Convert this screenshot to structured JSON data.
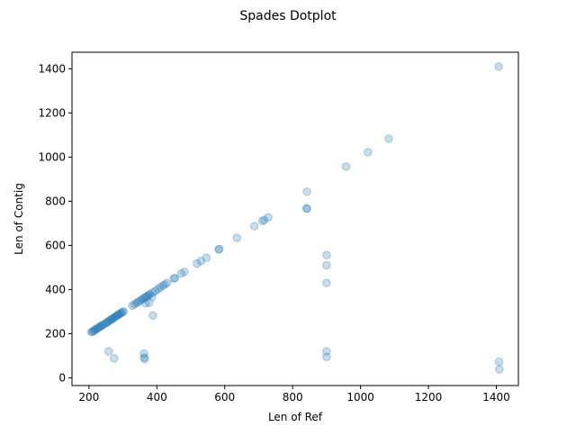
{
  "chart_data": {
    "type": "scatter",
    "title": "Spades Dotplot",
    "xlabel": "Len of Ref",
    "ylabel": "Len of Contig",
    "xlim": [
      150,
      1465
    ],
    "ylim": [
      -35,
      1475
    ],
    "xticks": [
      200,
      400,
      600,
      800,
      1000,
      1200,
      1400
    ],
    "yticks": [
      0,
      200,
      400,
      600,
      800,
      1000,
      1200,
      1400
    ],
    "grid": false,
    "legend": "none",
    "marker_color": "#1f77b4",
    "marker_alpha": 0.25,
    "series": [
      {
        "points": [
          [
            207,
            207
          ],
          [
            210,
            209
          ],
          [
            213,
            212
          ],
          [
            216,
            215
          ],
          [
            219,
            219
          ],
          [
            222,
            222
          ],
          [
            226,
            225
          ],
          [
            229,
            228
          ],
          [
            232,
            231
          ],
          [
            235,
            234
          ],
          [
            238,
            237
          ],
          [
            242,
            241
          ],
          [
            246,
            244
          ],
          [
            250,
            248
          ],
          [
            254,
            252
          ],
          [
            257,
            255
          ],
          [
            260,
            259
          ],
          [
            263,
            262
          ],
          [
            266,
            264
          ],
          [
            269,
            267
          ],
          [
            272,
            270
          ],
          [
            275,
            274
          ],
          [
            278,
            277
          ],
          [
            281,
            280
          ],
          [
            284,
            283
          ],
          [
            287,
            286
          ],
          [
            290,
            289
          ],
          [
            293,
            292
          ],
          [
            296,
            295
          ],
          [
            299,
            298
          ],
          [
            302,
            301
          ],
          [
            328,
            327
          ],
          [
            334,
            333
          ],
          [
            340,
            339
          ],
          [
            345,
            344
          ],
          [
            350,
            349
          ],
          [
            355,
            354
          ],
          [
            360,
            359
          ],
          [
            364,
            363
          ],
          [
            368,
            367
          ],
          [
            372,
            371
          ],
          [
            376,
            375
          ],
          [
            380,
            379
          ],
          [
            388,
            387
          ],
          [
            396,
            394
          ],
          [
            404,
            402
          ],
          [
            410,
            410
          ],
          [
            418,
            418
          ],
          [
            424,
            423
          ],
          [
            430,
            430
          ],
          [
            450,
            450
          ],
          [
            453,
            452
          ],
          [
            472,
            472
          ],
          [
            481,
            480
          ],
          [
            518,
            518
          ],
          [
            530,
            529
          ],
          [
            546,
            544
          ],
          [
            582,
            582
          ],
          [
            584,
            583
          ],
          [
            636,
            634
          ],
          [
            687,
            687
          ],
          [
            711,
            710
          ],
          [
            716,
            715
          ],
          [
            728,
            727
          ],
          [
            841,
            768
          ],
          [
            842,
            766
          ],
          [
            842,
            843
          ],
          [
            900,
            556
          ],
          [
            900,
            510
          ],
          [
            900,
            430
          ],
          [
            900,
            120
          ],
          [
            900,
            95
          ],
          [
            957,
            957
          ],
          [
            1022,
            1022
          ],
          [
            1083,
            1083
          ],
          [
            1407,
            1410
          ],
          [
            1408,
            73
          ],
          [
            1409,
            38
          ],
          [
            258,
            120
          ],
          [
            274,
            88
          ],
          [
            362,
            110
          ],
          [
            363,
            92
          ],
          [
            364,
            85
          ],
          [
            367,
            337
          ],
          [
            377,
            340
          ],
          [
            386,
            367
          ],
          [
            388,
            282
          ]
        ]
      }
    ]
  }
}
